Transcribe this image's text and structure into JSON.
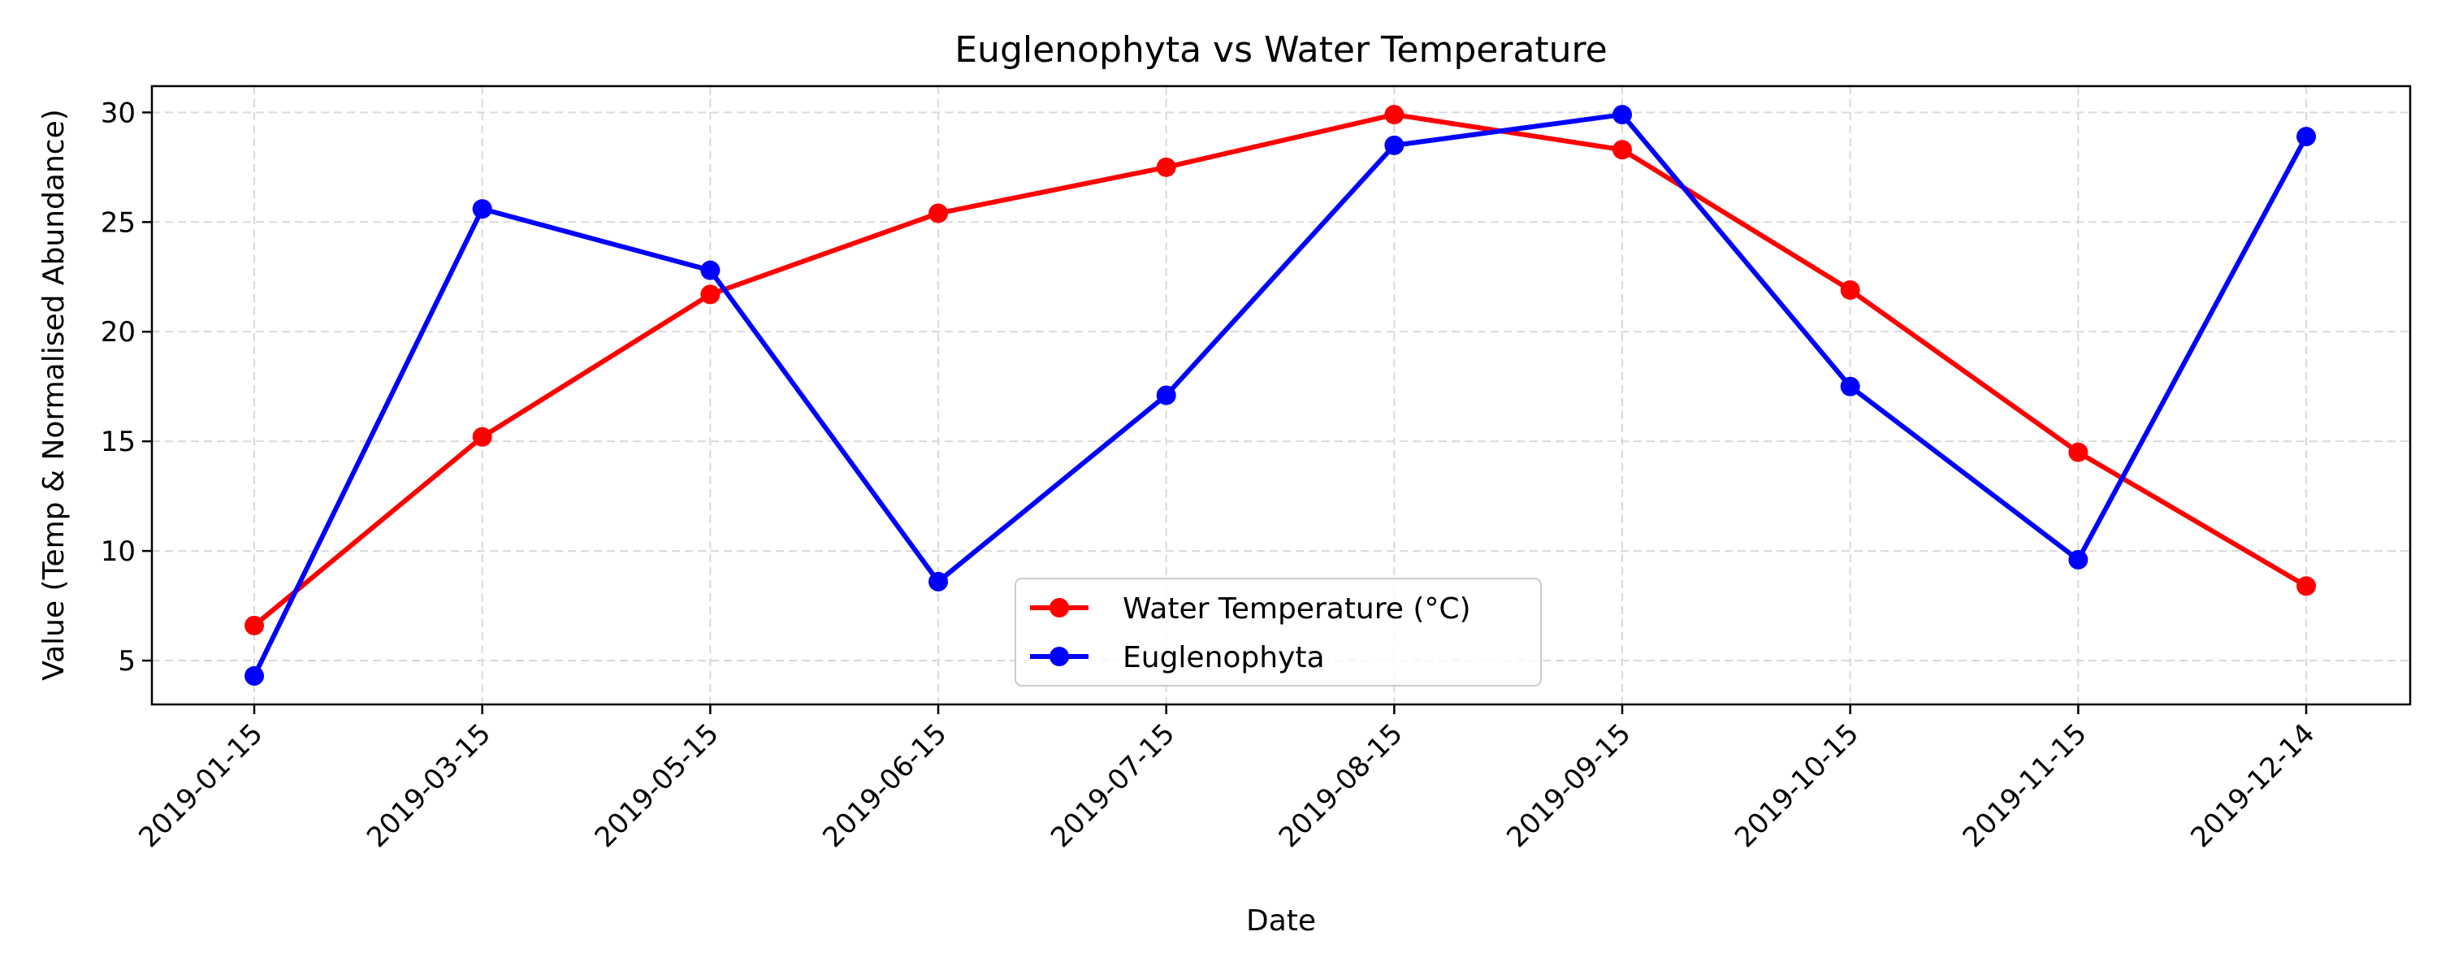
{
  "chart_data": {
    "type": "line",
    "title": "Euglenophyta vs Water Temperature",
    "xlabel": "Date",
    "ylabel": "Value (Temp & Normalised Abundance)",
    "x": [
      "2019-01-15",
      "2019-03-15",
      "2019-05-15",
      "2019-06-15",
      "2019-07-15",
      "2019-08-15",
      "2019-09-15",
      "2019-10-15",
      "2019-11-15",
      "2019-12-14"
    ],
    "series": [
      {
        "name": "Water Temperature (°C)",
        "color": "#ff0000",
        "values": [
          6.6,
          15.2,
          21.7,
          25.4,
          27.5,
          29.9,
          28.3,
          21.9,
          14.5,
          8.4
        ]
      },
      {
        "name": "Euglenophyta",
        "color": "#0000ff",
        "values": [
          4.3,
          25.6,
          22.8,
          8.6,
          17.1,
          28.5,
          29.9,
          17.5,
          9.6,
          28.9
        ]
      }
    ],
    "ylim": [
      3.0,
      31.2
    ],
    "yticks": [
      5,
      10,
      15,
      20,
      25,
      30
    ],
    "grid": true,
    "legend_position": "lower center",
    "marker": "circle"
  }
}
